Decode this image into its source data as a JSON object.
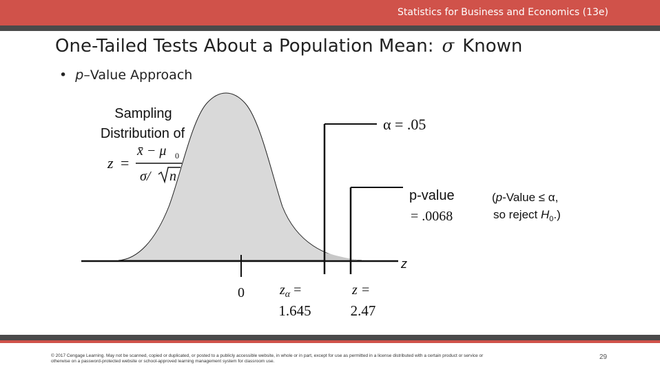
{
  "header": {
    "text": "Statistics for Business and Economics (13e)"
  },
  "slide": {
    "title_prefix": "One-Tailed Tests About a Population Mean:",
    "title_symbol": "σ",
    "title_suffix": "Known",
    "bullet_marker": "•",
    "bullet_p": "p",
    "bullet_rest": "–Value Approach"
  },
  "figure": {
    "sampling_line1": "Sampling",
    "sampling_line2": "Distribution of",
    "formula_z": "z",
    "formula_eq": "=",
    "formula_num": "x̄ − μ",
    "formula_num_sub": "0",
    "formula_den_sigma": "σ/",
    "formula_den_n": "n",
    "alpha_label": "α = .05",
    "pvalue_label": "p-value",
    "pvalue_value": "= .0068",
    "note_line1_open": "(",
    "note_line1_p": "p",
    "note_line1_rest": "-Value ≤ α,",
    "note_line2_pre": "so reject ",
    "note_line2_h": "H",
    "note_line2_sub": "0",
    "note_line2_post": ".)",
    "axis_label": "z",
    "tick_zero": "0",
    "z_alpha_label": "z",
    "z_alpha_sub": "α",
    "z_alpha_eq": " =",
    "z_alpha_value": "1.645",
    "z_label": "z =",
    "z_value": "2.47"
  },
  "footer": {
    "copyright_line1": "© 2017 Cengage Learning. May not be scanned, copied or duplicated, or posted to a publicly accessible website, in whole or in part, except for use as permitted in a license distributed with a certain product or service or",
    "copyright_line2": "otherwise on a password-protected website or school-approved learning management system for classroom use.",
    "page_number": "29"
  },
  "colors": {
    "topbar": "#d0524a",
    "darkbar": "#4a4a4a",
    "curve_fill": "#d9d9d9"
  }
}
